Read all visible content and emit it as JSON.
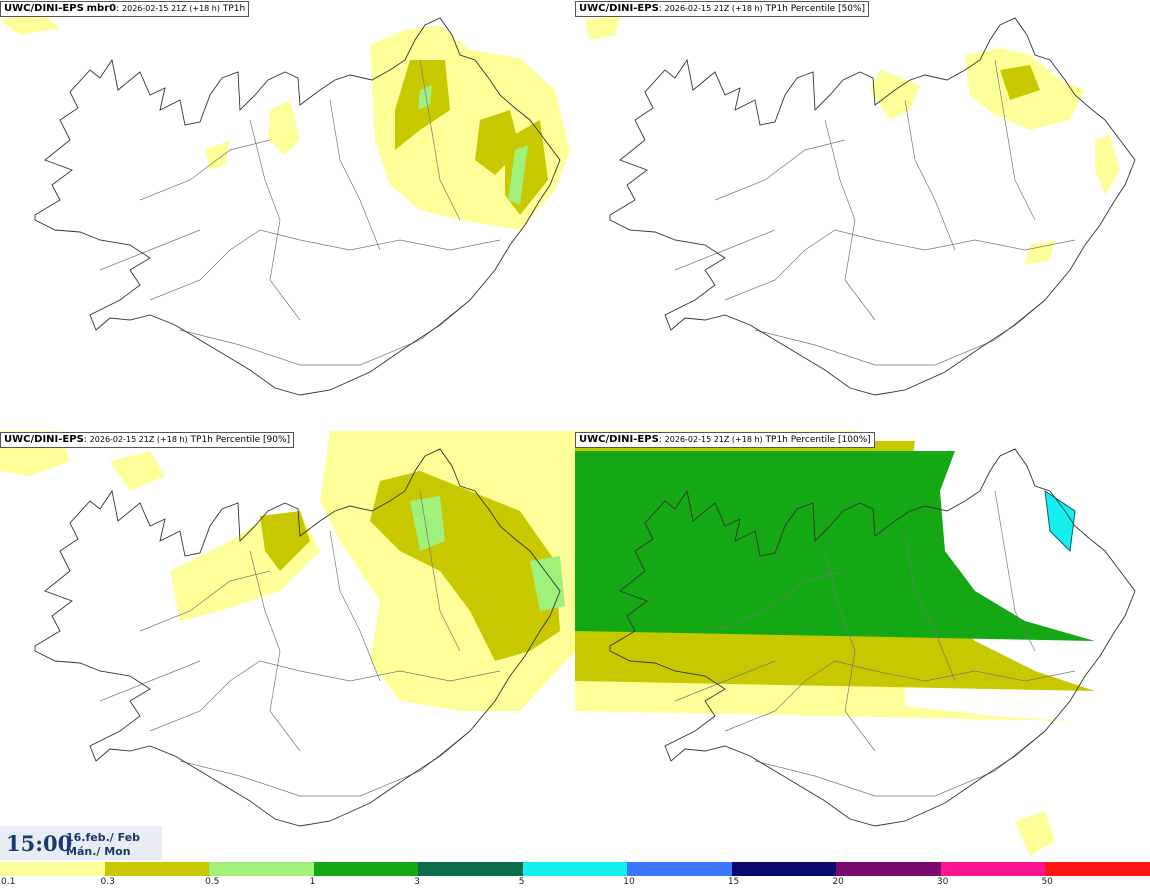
{
  "panels": [
    {
      "model": "UWC/DINI-EPS",
      "member": "mbr0",
      "run": "2026-02-15 21Z (+18 h)",
      "field": "TP1h",
      "level": 1
    },
    {
      "model": "UWC/DINI-EPS",
      "member": "",
      "run": "2026-02-15 21Z (+18 h)",
      "field": "TP1h Percentile [50%]",
      "level": 0
    },
    {
      "model": "UWC/DINI-EPS",
      "member": "",
      "run": "2026-02-15 21Z (+18 h)",
      "field": "TP1h Percentile [90%]",
      "level": 2
    },
    {
      "model": "UWC/DINI-EPS",
      "member": "",
      "run": "2026-02-15 21Z (+18 h)",
      "field": "TP1h Percentile [100%]",
      "level": 3
    }
  ],
  "valid_time": {
    "time": "15:00",
    "date_line1": "16.feb./ Feb",
    "date_line2": "Mán./ Mon"
  },
  "legend": {
    "colors": [
      "#ffff99",
      "#c8c800",
      "#a0f07c",
      "#14a814",
      "#0c6b4a",
      "#14f0f0",
      "#3c78ff",
      "#0a0a6e",
      "#7a0a6e",
      "#ff1490",
      "#ff1414"
    ],
    "ticks": [
      "0.1",
      "0.3",
      "0.5",
      "1",
      "3",
      "5",
      "10",
      "15",
      "20",
      "30",
      "50"
    ]
  },
  "map_colors": {
    "coast": "#333333",
    "roads": "#777777"
  }
}
